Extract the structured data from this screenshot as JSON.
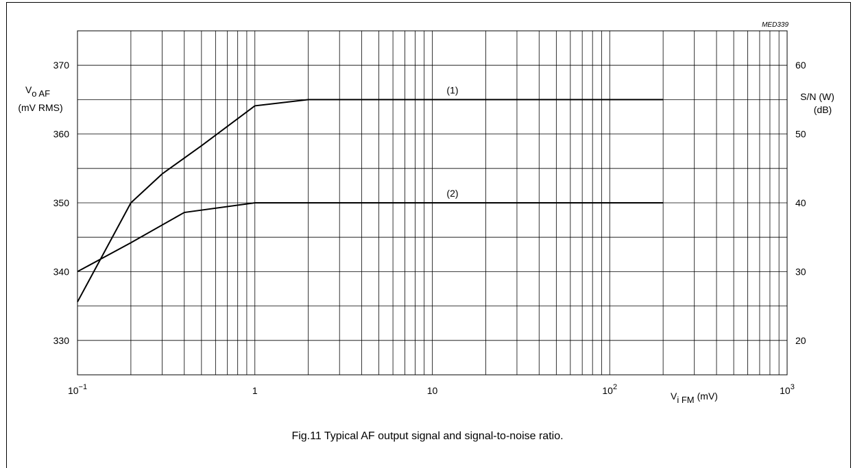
{
  "figure": {
    "ref_code": "MED339",
    "caption": "Fig.11  Typical AF output signal and signal-to-noise ratio."
  },
  "chart_data": {
    "type": "line",
    "x_scale": "log",
    "xlim": [
      0.1,
      1000
    ],
    "ylim_left": [
      325,
      375
    ],
    "ylim_right": [
      15,
      65
    ],
    "grid": true,
    "xlabel": {
      "main": "V",
      "sub": "i FM",
      "unit": "(mV)"
    },
    "ylabel_left": {
      "main": "V",
      "sub": "o AF",
      "unit": "(mV RMS)"
    },
    "ylabel_right": {
      "line1": "S/N (W)",
      "line2": "(dB)"
    },
    "x_ticks": [
      {
        "value": 0.1,
        "base": "10",
        "exp": "−1"
      },
      {
        "value": 1,
        "base": "1",
        "exp": ""
      },
      {
        "value": 10,
        "base": "10",
        "exp": ""
      },
      {
        "value": 100,
        "base": "10",
        "exp": "2"
      },
      {
        "value": 1000,
        "base": "10",
        "exp": "3"
      }
    ],
    "y_ticks_left": [
      330,
      340,
      350,
      360,
      370
    ],
    "y_ticks_right": [
      20,
      30,
      40,
      50,
      60
    ],
    "series": [
      {
        "name": "(1)",
        "axis": "right",
        "points": [
          {
            "x": 0.1,
            "y": 25.6
          },
          {
            "x": 0.2,
            "y": 40
          },
          {
            "x": 0.3,
            "y": 44.2
          },
          {
            "x": 0.5,
            "y": 48.3
          },
          {
            "x": 1,
            "y": 54.1
          },
          {
            "x": 2,
            "y": 55
          },
          {
            "x": 200,
            "y": 55
          }
        ]
      },
      {
        "name": "(2)",
        "axis": "left",
        "points": [
          {
            "x": 0.1,
            "y": 340
          },
          {
            "x": 0.2,
            "y": 344.2
          },
          {
            "x": 0.4,
            "y": 348.6
          },
          {
            "x": 1,
            "y": 350
          },
          {
            "x": 200,
            "y": 350
          }
        ]
      }
    ],
    "series_label_x": [
      13,
      13
    ]
  }
}
